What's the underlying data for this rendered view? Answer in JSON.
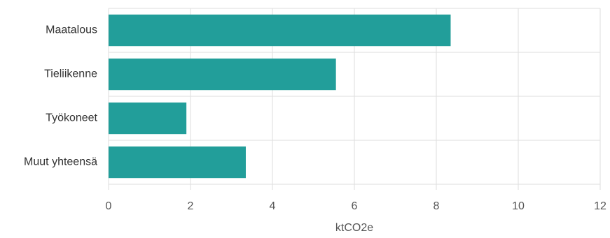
{
  "chart_data": {
    "type": "bar",
    "orientation": "horizontal",
    "title": "",
    "xlabel": "ktCO2e",
    "ylabel": "",
    "categories": [
      "Maatalous",
      "Tieliikenne",
      "Työkoneet",
      "Muut yhteensä"
    ],
    "values": [
      8.35,
      5.55,
      1.9,
      3.35
    ],
    "xlim": [
      0,
      12
    ],
    "xticks": [
      "0",
      "2",
      "4",
      "6",
      "8",
      "10",
      "12"
    ],
    "grid": true,
    "legend": "none",
    "bar_color": "#229e9a",
    "grid_color": "#dddddd"
  }
}
